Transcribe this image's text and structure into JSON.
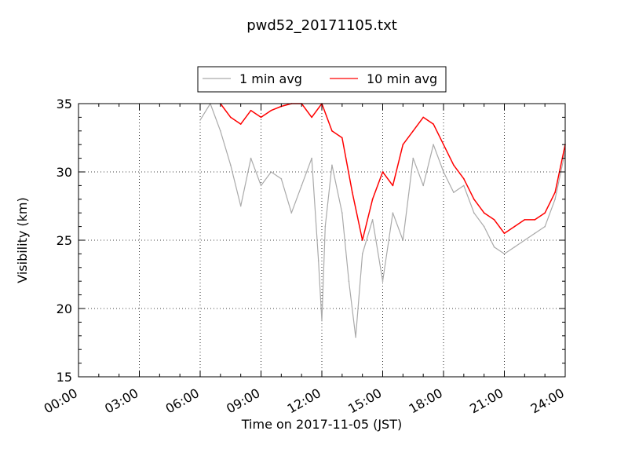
{
  "chart_data": {
    "type": "line",
    "title": "pwd52_20171105.txt",
    "xlabel": "Time on 2017-11-05 (JST)",
    "ylabel": "Visibility (km)",
    "xlim": [
      "00:00",
      "24:00"
    ],
    "ylim": [
      15,
      35
    ],
    "x_ticks": [
      "00:00",
      "03:00",
      "06:00",
      "09:00",
      "12:00",
      "15:00",
      "18:00",
      "21:00",
      "24:00"
    ],
    "y_ticks": [
      "15",
      "20",
      "25",
      "30",
      "35"
    ],
    "grid": true,
    "legend_position": "top-center",
    "series": [
      {
        "name": "1 min avg",
        "color": "#aaaaaa",
        "points": [
          [
            "06:00",
            33.8
          ],
          [
            "06:30",
            35.0
          ],
          [
            "07:00",
            33.0
          ],
          [
            "07:30",
            30.5
          ],
          [
            "08:00",
            27.5
          ],
          [
            "08:30",
            31.0
          ],
          [
            "09:00",
            29.0
          ],
          [
            "09:30",
            30.0
          ],
          [
            "10:00",
            29.5
          ],
          [
            "10:30",
            27.0
          ],
          [
            "11:00",
            29.0
          ],
          [
            "11:30",
            31.0
          ],
          [
            "11:50",
            23.5
          ],
          [
            "12:00",
            19.1
          ],
          [
            "12:10",
            26.0
          ],
          [
            "12:30",
            30.5
          ],
          [
            "13:00",
            27.0
          ],
          [
            "13:20",
            22.0
          ],
          [
            "13:40",
            17.9
          ],
          [
            "14:00",
            24.0
          ],
          [
            "14:30",
            26.5
          ],
          [
            "15:00",
            22.0
          ],
          [
            "15:30",
            27.0
          ],
          [
            "16:00",
            25.0
          ],
          [
            "16:30",
            31.0
          ],
          [
            "17:00",
            29.0
          ],
          [
            "17:30",
            32.0
          ],
          [
            "18:00",
            30.0
          ],
          [
            "18:30",
            28.5
          ],
          [
            "19:00",
            29.0
          ],
          [
            "19:30",
            27.0
          ],
          [
            "20:00",
            26.0
          ],
          [
            "20:30",
            24.5
          ],
          [
            "21:00",
            24.0
          ],
          [
            "21:30",
            24.5
          ],
          [
            "22:00",
            25.0
          ],
          [
            "22:30",
            25.5
          ],
          [
            "23:00",
            26.0
          ],
          [
            "23:30",
            28.0
          ],
          [
            "24:00",
            31.5
          ]
        ]
      },
      {
        "name": "10 min avg",
        "color": "#ff0000",
        "points": [
          [
            "07:00",
            35.0
          ],
          [
            "07:30",
            34.0
          ],
          [
            "08:00",
            33.5
          ],
          [
            "08:30",
            34.5
          ],
          [
            "09:00",
            34.0
          ],
          [
            "09:30",
            34.5
          ],
          [
            "10:00",
            34.8
          ],
          [
            "10:30",
            35.0
          ],
          [
            "11:00",
            35.0
          ],
          [
            "11:30",
            34.0
          ],
          [
            "12:00",
            35.0
          ],
          [
            "12:30",
            33.0
          ],
          [
            "13:00",
            32.5
          ],
          [
            "13:30",
            28.5
          ],
          [
            "14:00",
            25.0
          ],
          [
            "14:30",
            28.0
          ],
          [
            "15:00",
            30.0
          ],
          [
            "15:30",
            29.0
          ],
          [
            "16:00",
            32.0
          ],
          [
            "16:30",
            33.0
          ],
          [
            "17:00",
            34.0
          ],
          [
            "17:30",
            33.5
          ],
          [
            "18:00",
            32.0
          ],
          [
            "18:30",
            30.5
          ],
          [
            "19:00",
            29.5
          ],
          [
            "19:30",
            28.0
          ],
          [
            "20:00",
            27.0
          ],
          [
            "20:30",
            26.5
          ],
          [
            "21:00",
            25.5
          ],
          [
            "21:30",
            26.0
          ],
          [
            "22:00",
            26.5
          ],
          [
            "22:30",
            26.5
          ],
          [
            "23:00",
            27.0
          ],
          [
            "23:30",
            28.5
          ],
          [
            "24:00",
            32.0
          ]
        ]
      }
    ]
  }
}
